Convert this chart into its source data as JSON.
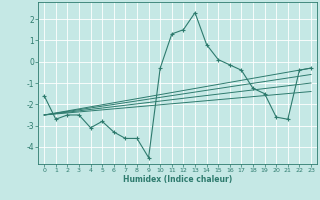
{
  "xlabel": "Humidex (Indice chaleur)",
  "bg_color": "#c5e8e5",
  "grid_color": "#ffffff",
  "line_color": "#2e7b6e",
  "xlim": [
    -0.5,
    23.5
  ],
  "ylim": [
    -4.8,
    2.8
  ],
  "yticks": [
    -4,
    -3,
    -2,
    -1,
    0,
    1,
    2
  ],
  "xticks": [
    0,
    1,
    2,
    3,
    4,
    5,
    6,
    7,
    8,
    9,
    10,
    11,
    12,
    13,
    14,
    15,
    16,
    17,
    18,
    19,
    20,
    21,
    22,
    23
  ],
  "main_line": {
    "x": [
      0,
      1,
      2,
      3,
      4,
      5,
      6,
      7,
      8,
      9,
      10,
      11,
      12,
      13,
      14,
      15,
      16,
      17,
      18,
      19,
      20,
      21,
      22,
      23
    ],
    "y": [
      -1.6,
      -2.7,
      -2.5,
      -2.5,
      -3.1,
      -2.8,
      -3.3,
      -3.6,
      -3.6,
      -4.5,
      -0.3,
      1.3,
      1.5,
      2.3,
      0.8,
      0.1,
      -0.15,
      -0.4,
      -1.25,
      -1.5,
      -2.6,
      -2.7,
      -0.4,
      -0.3
    ]
  },
  "trend_lines": [
    {
      "x": [
        0,
        23
      ],
      "y": [
        -2.5,
        -0.3
      ]
    },
    {
      "x": [
        0,
        23
      ],
      "y": [
        -2.5,
        -0.6
      ]
    },
    {
      "x": [
        0,
        23
      ],
      "y": [
        -2.5,
        -1.0
      ]
    },
    {
      "x": [
        0,
        23
      ],
      "y": [
        -2.5,
        -1.4
      ]
    }
  ]
}
